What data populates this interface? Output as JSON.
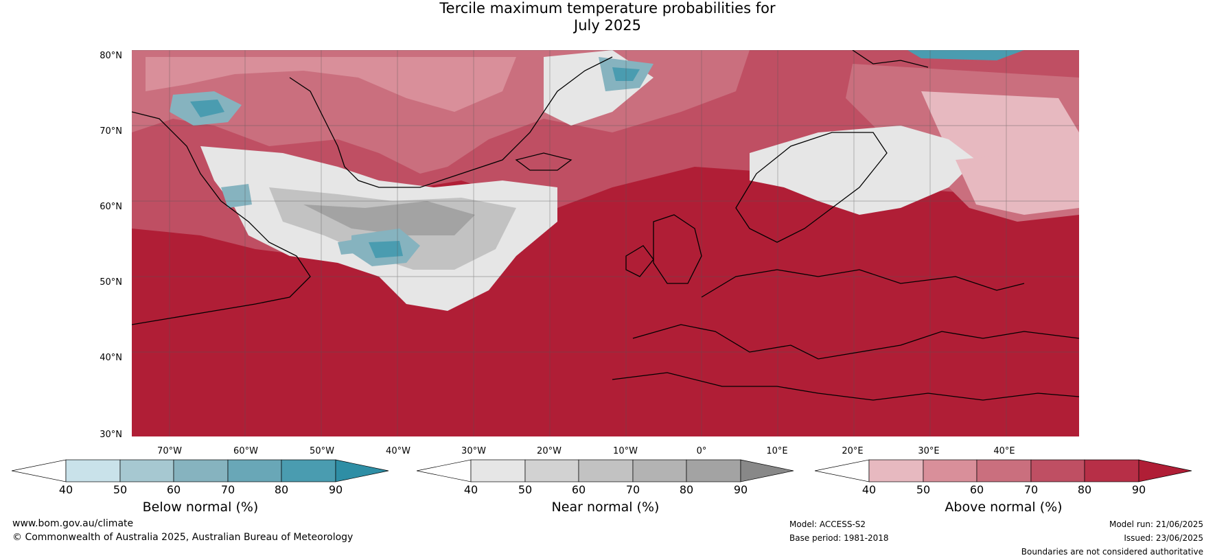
{
  "title": {
    "line1": "Tercile maximum temperature probabilities for",
    "line2": "July 2025"
  },
  "axes": {
    "lat_labels": [
      "80°N",
      "70°N",
      "60°N",
      "50°N",
      "40°N",
      "30°N"
    ],
    "lon_labels": [
      "70°W",
      "60°W",
      "50°W",
      "40°W",
      "30°W",
      "20°W",
      "10°W",
      "0°",
      "10°E",
      "20°E",
      "30°E",
      "40°E"
    ]
  },
  "colorbars": [
    {
      "name": "Below normal (%)",
      "ticks": [
        "40",
        "50",
        "60",
        "70",
        "80",
        "90"
      ],
      "colors": [
        "#ffffff",
        "#c9e2ea",
        "#a6c8d1",
        "#86b3bf",
        "#69a7b7",
        "#4a9cb0",
        "#2e8ea5"
      ]
    },
    {
      "name": "Near normal (%)",
      "ticks": [
        "40",
        "50",
        "60",
        "70",
        "80",
        "90"
      ],
      "colors": [
        "#ffffff",
        "#e6e6e6",
        "#d2d2d2",
        "#c2c2c2",
        "#b3b3b3",
        "#a3a3a3",
        "#888888"
      ]
    },
    {
      "name": "Above normal (%)",
      "ticks": [
        "40",
        "50",
        "60",
        "70",
        "80",
        "90"
      ],
      "colors": [
        "#ffffff",
        "#e7b9c0",
        "#d98f9a",
        "#ca6f7e",
        "#bf4f63",
        "#b72f47",
        "#b01e36"
      ]
    }
  ],
  "footer": {
    "url": "www.bom.gov.au/climate",
    "copyright": "© Commonwealth of Australia 2025, Australian Bureau of Meteorology",
    "model": "Model: ACCESS-S2",
    "base_period": "Base period: 1981-2018",
    "model_run": "Model run: 21/06/2025",
    "issued": "Issued: 23/06/2025",
    "disclaimer": "Boundaries are not considered authoritative"
  }
}
